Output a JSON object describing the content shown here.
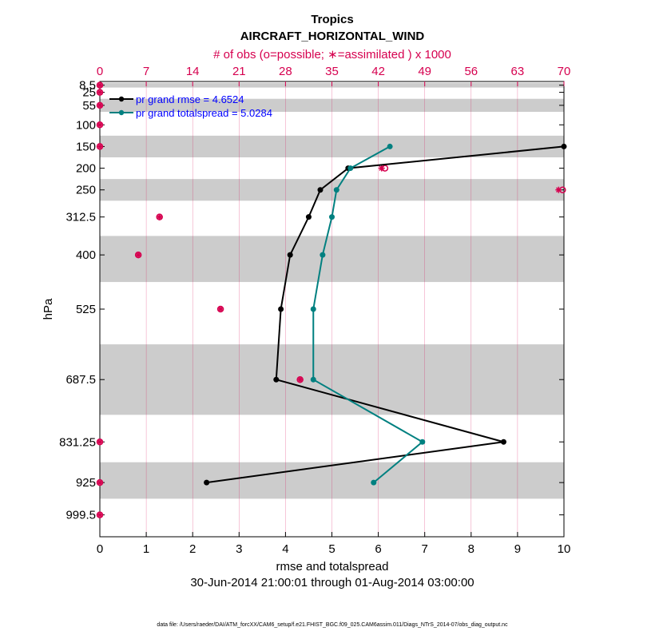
{
  "chart_data": {
    "type": "line",
    "title": "Tropics",
    "subtitle": "AIRCRAFT_HORIZONTAL_WIND",
    "top_axis_label": "# of obs (o=possible; ∗=assimilated ) x 1000",
    "xlabel": "rmse and totalspread",
    "ylabel": "hPa",
    "date_range": "30-Jun-2014 21:00:01 through 01-Aug-2014 03:00:00",
    "footer": "data file: /Users/raeder/DAI/ATM_forcXX/CAM6_setup/f.e21.FHIST_BGC.f09_025.CAM6assim.011/Diags_NTrS_2014-07/obs_diag_output.nc",
    "xlim": [
      0,
      10
    ],
    "x_ticks": [
      0,
      1,
      2,
      3,
      4,
      5,
      6,
      7,
      8,
      9,
      10
    ],
    "top_xlim": [
      0,
      70
    ],
    "top_ticks": [
      0,
      7,
      14,
      21,
      28,
      35,
      42,
      49,
      56,
      63,
      70
    ],
    "ylim": [
      1050,
      0
    ],
    "y_scale": "linear, inverted",
    "levels": [
      8.5,
      25,
      55,
      100,
      150,
      200,
      250,
      312.5,
      400,
      525,
      687.5,
      831.25,
      925,
      999.5
    ],
    "level_labels": [
      "8.5",
      "25",
      "55",
      "100",
      "150",
      "200",
      "250",
      "312.5",
      "400",
      "525",
      "687.5",
      "831.25",
      "925",
      "999.5"
    ],
    "shaded_bands": [
      [
        3,
        14
      ],
      [
        40,
        70
      ],
      [
        125,
        175
      ],
      [
        225,
        275
      ],
      [
        356.25,
        462.5
      ],
      [
        606.25,
        768.75
      ],
      [
        878.125,
        962.25
      ]
    ],
    "grid": "vertical lines at top-axis ticks",
    "legend_position": "top-left",
    "series": [
      {
        "name": "pr grand rmse = 4.6524",
        "color": "#000000",
        "points": [
          {
            "x": 10.0,
            "y": 150
          },
          {
            "x": 5.35,
            "y": 200
          },
          {
            "x": 4.75,
            "y": 250
          },
          {
            "x": 4.5,
            "y": 312.5
          },
          {
            "x": 4.1,
            "y": 400
          },
          {
            "x": 3.9,
            "y": 525
          },
          {
            "x": 3.8,
            "y": 687.5
          },
          {
            "x": 8.7,
            "y": 831.25
          },
          {
            "x": 2.3,
            "y": 925
          }
        ]
      },
      {
        "name": "pr grand totalspread = 5.0284",
        "color": "#008080",
        "points": [
          {
            "x": 6.25,
            "y": 150
          },
          {
            "x": 5.4,
            "y": 200
          },
          {
            "x": 5.1,
            "y": 250
          },
          {
            "x": 5.0,
            "y": 312.5
          },
          {
            "x": 4.8,
            "y": 400
          },
          {
            "x": 4.6,
            "y": 525
          },
          {
            "x": 4.6,
            "y": 687.5
          },
          {
            "x": 6.95,
            "y": 831.25
          },
          {
            "x": 5.9,
            "y": 925
          }
        ]
      }
    ],
    "obs_counts": {
      "color": "#d6004f",
      "units": "thousands",
      "values": [
        {
          "level": 8.5,
          "possible": 0,
          "assimilated": 0
        },
        {
          "level": 25,
          "possible": 0,
          "assimilated": 0
        },
        {
          "level": 55,
          "possible": 0,
          "assimilated": 0
        },
        {
          "level": 100,
          "possible": 0,
          "assimilated": 0
        },
        {
          "level": 150,
          "possible": 0,
          "assimilated": 0
        },
        {
          "level": 200,
          "possible": 43,
          "assimilated": 42.5
        },
        {
          "level": 250,
          "possible": 69.8,
          "assimilated": 69.2
        },
        {
          "level": 312.5,
          "possible": 9,
          "assimilated": 9
        },
        {
          "level": 400,
          "possible": 5.8,
          "assimilated": 5.8
        },
        {
          "level": 525,
          "possible": 18.2,
          "assimilated": 18.2
        },
        {
          "level": 687.5,
          "possible": 30.2,
          "assimilated": 30.2
        },
        {
          "level": 831.25,
          "possible": 0,
          "assimilated": 0
        },
        {
          "level": 925,
          "possible": 0,
          "assimilated": 0
        },
        {
          "level": 999.5,
          "possible": 0,
          "assimilated": 0
        }
      ]
    }
  }
}
